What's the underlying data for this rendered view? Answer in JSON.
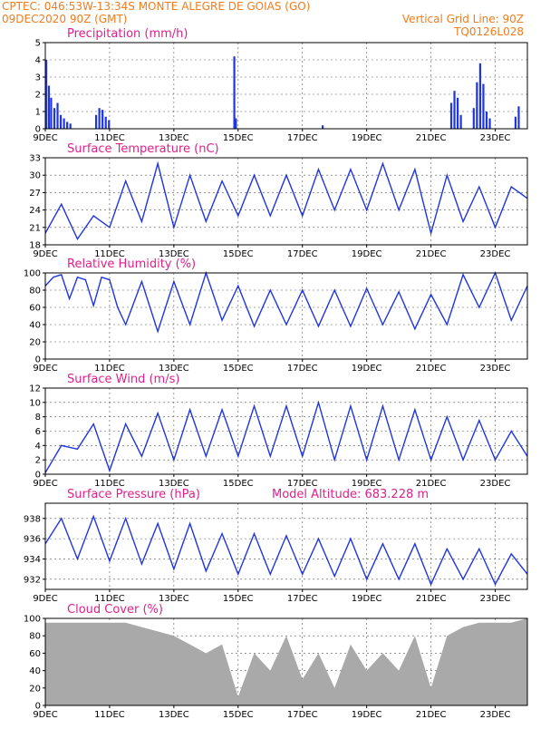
{
  "header": {
    "line1": "CPTEC:   046:53W-13:34S   MONTE ALEGRE DE GOIAS (GO)",
    "line2_left": "09DEC2020 90Z (GMT)",
    "line2_right": "Vertical Grid Line: 90Z",
    "line3_right": "TQ0126L028"
  },
  "colors": {
    "line": "#1f35e0",
    "bar": "#1f35e0",
    "cloud": "#a9a9a9",
    "header": "#f07c1e",
    "title": "#e0208a"
  },
  "x_axis": {
    "labels": [
      "9DEC",
      "11DEC",
      "13DEC",
      "15DEC",
      "17DEC",
      "19DEC",
      "21DEC",
      "23DEC"
    ],
    "label_days": [
      0,
      2,
      4,
      6,
      8,
      10,
      12,
      14
    ],
    "day_span": 15
  },
  "panels": [
    {
      "id": "precip",
      "title": "Precipitation (mm/h)",
      "yticks": [
        0,
        1,
        2,
        3,
        4,
        5
      ],
      "ylim": [
        0,
        5
      ]
    },
    {
      "id": "temp",
      "title": "Surface Temperature (nC)",
      "yticks": [
        18,
        21,
        24,
        27,
        30,
        33
      ],
      "ylim": [
        18,
        33
      ]
    },
    {
      "id": "rh",
      "title": "Relative Humidity (%)",
      "yticks": [
        0,
        20,
        40,
        60,
        80,
        100
      ],
      "ylim": [
        0,
        100
      ]
    },
    {
      "id": "wind",
      "title": "Surface Wind (m/s)",
      "yticks": [
        0,
        2,
        4,
        6,
        8,
        10,
        12
      ],
      "ylim": [
        0,
        12
      ]
    },
    {
      "id": "press",
      "title": "Surface Pressure (hPa)",
      "extra_label": "Model Altitude: 683.228 m",
      "yticks": [
        932,
        934,
        936,
        938
      ],
      "ylim": [
        931,
        939.5
      ]
    },
    {
      "id": "cloud",
      "title": "Cloud Cover (%)",
      "yticks": [
        0,
        20,
        40,
        60,
        80,
        100
      ],
      "ylim": [
        0,
        100
      ]
    }
  ],
  "chart_data": [
    {
      "type": "bar",
      "title": "Precipitation (mm/h)",
      "ylim": [
        0,
        5
      ],
      "x_days": [
        0.0,
        0.08,
        0.15,
        0.25,
        0.35,
        0.45,
        0.55,
        0.65,
        0.75,
        1.55,
        1.65,
        1.75,
        1.85,
        1.95,
        5.85,
        5.9,
        8.6,
        12.6,
        12.7,
        12.8,
        12.9,
        13.3,
        13.4,
        13.5,
        13.6,
        13.7,
        13.8,
        14.6,
        14.7
      ],
      "values": [
        4.0,
        2.5,
        1.8,
        1.2,
        1.5,
        0.8,
        0.6,
        0.4,
        0.3,
        0.8,
        1.2,
        1.1,
        0.7,
        0.5,
        4.2,
        0.6,
        0.2,
        1.5,
        2.2,
        1.8,
        0.8,
        1.2,
        2.7,
        3.8,
        2.6,
        1.0,
        0.6,
        0.7,
        1.3
      ]
    },
    {
      "type": "line",
      "title": "Surface Temperature (nC)",
      "ylim": [
        18,
        33
      ],
      "x_days": [
        0,
        0.5,
        1,
        1.5,
        2,
        2.5,
        3,
        3.5,
        4,
        4.5,
        5,
        5.5,
        6,
        6.5,
        7,
        7.5,
        8,
        8.5,
        9,
        9.5,
        10,
        10.5,
        11,
        11.5,
        12,
        12.5,
        13,
        13.5,
        14,
        14.5,
        15
      ],
      "values": [
        20,
        25,
        19,
        23,
        21,
        29,
        22,
        32,
        21,
        30,
        22,
        29,
        23,
        30,
        23,
        30,
        23,
        31,
        24,
        31,
        24,
        32,
        24,
        31,
        20,
        30,
        22,
        28,
        21,
        28,
        26
      ]
    },
    {
      "type": "line",
      "title": "Relative Humidity (%)",
      "ylim": [
        0,
        100
      ],
      "x_days": [
        0,
        0.25,
        0.5,
        0.75,
        1,
        1.25,
        1.5,
        1.75,
        2,
        2.25,
        2.5,
        3,
        3.5,
        4,
        4.5,
        5,
        5.5,
        6,
        6.5,
        7,
        7.5,
        8,
        8.5,
        9,
        9.5,
        10,
        10.5,
        11,
        11.5,
        12,
        12.5,
        13,
        13.5,
        14,
        14.5,
        15
      ],
      "values": [
        85,
        95,
        98,
        70,
        95,
        92,
        62,
        95,
        92,
        60,
        40,
        90,
        32,
        90,
        40,
        100,
        45,
        85,
        38,
        80,
        40,
        80,
        38,
        80,
        38,
        82,
        40,
        78,
        35,
        75,
        40,
        98,
        60,
        100,
        45,
        85
      ]
    },
    {
      "type": "line",
      "title": "Surface Wind (m/s)",
      "ylim": [
        0,
        12
      ],
      "x_days": [
        0,
        0.5,
        1,
        1.5,
        2,
        2.5,
        3,
        3.5,
        4,
        4.5,
        5,
        5.5,
        6,
        6.5,
        7,
        7.5,
        8,
        8.5,
        9,
        9.5,
        10,
        10.5,
        11,
        11.5,
        12,
        12.5,
        13,
        13.5,
        14,
        14.5,
        15
      ],
      "values": [
        0.2,
        4.0,
        3.5,
        7.0,
        0.5,
        7.0,
        2.5,
        8.5,
        2.0,
        9.0,
        2.5,
        9.0,
        2.5,
        9.5,
        2.5,
        9.5,
        2.5,
        10.0,
        2.0,
        9.5,
        2.0,
        9.5,
        2.0,
        9.0,
        2.0,
        8.0,
        2.0,
        7.5,
        2.0,
        6.0,
        2.5
      ]
    },
    {
      "type": "line",
      "title": "Surface Pressure (hPa)",
      "ylim": [
        931,
        939.5
      ],
      "x_days": [
        0,
        0.5,
        1,
        1.5,
        2,
        2.5,
        3,
        3.5,
        4,
        4.5,
        5,
        5.5,
        6,
        6.5,
        7,
        7.5,
        8,
        8.5,
        9,
        9.5,
        10,
        10.5,
        11,
        11.5,
        12,
        12.5,
        13,
        13.5,
        14,
        14.5,
        15
      ],
      "values": [
        935.5,
        938.0,
        934.0,
        938.2,
        933.8,
        938.0,
        933.5,
        937.5,
        933.0,
        937.5,
        932.8,
        936.5,
        932.5,
        936.5,
        932.5,
        936.3,
        932.5,
        936.0,
        932.3,
        936.0,
        932.0,
        935.5,
        932.0,
        935.5,
        931.5,
        935.0,
        932.0,
        935.0,
        931.5,
        934.5,
        932.5
      ]
    },
    {
      "type": "area",
      "title": "Cloud Cover (%)",
      "ylim": [
        0,
        100
      ],
      "x_days": [
        0,
        0.5,
        1,
        1.5,
        2,
        2.5,
        3,
        3.5,
        4,
        4.5,
        5,
        5.5,
        6,
        6.5,
        7,
        7.5,
        8,
        8.5,
        9,
        9.5,
        10,
        10.5,
        11,
        11.5,
        12,
        12.5,
        13,
        13.5,
        14,
        14.5,
        15
      ],
      "values": [
        95,
        95,
        95,
        95,
        95,
        95,
        90,
        85,
        80,
        70,
        60,
        70,
        10,
        60,
        40,
        80,
        30,
        60,
        20,
        70,
        40,
        60,
        40,
        80,
        20,
        80,
        90,
        95,
        95,
        95,
        100
      ]
    }
  ]
}
